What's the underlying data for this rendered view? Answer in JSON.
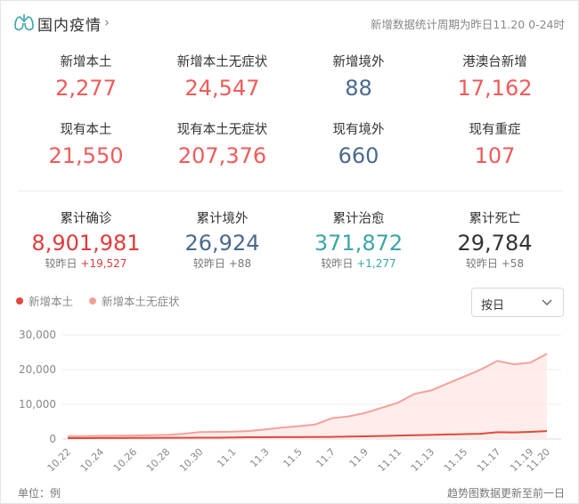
{
  "header": {
    "title": "国内疫情",
    "chevron": "›",
    "period": "新增数据统计周期为昨日11.20 0-24时"
  },
  "colors": {
    "red": "#ef5b5b",
    "darkred": "#e23a3a",
    "blue": "#4a6a8c",
    "teal": "#3aa6a6",
    "dark": "#333333",
    "line1": "#e04a3c",
    "line2": "#f4a19a",
    "area2": "#fde6e3"
  },
  "stats_row1": [
    {
      "label": "新增本土",
      "value": "2,277",
      "color": "red"
    },
    {
      "label": "新增本土无症状",
      "value": "24,547",
      "color": "red"
    },
    {
      "label": "新增境外",
      "value": "88",
      "color": "blue"
    },
    {
      "label": "港澳台新增",
      "value": "17,162",
      "color": "red"
    }
  ],
  "stats_row2": [
    {
      "label": "现有本土",
      "value": "21,550",
      "color": "red"
    },
    {
      "label": "现有本土无症状",
      "value": "207,376",
      "color": "red"
    },
    {
      "label": "现有境外",
      "value": "660",
      "color": "blue"
    },
    {
      "label": "现有重症",
      "value": "107",
      "color": "red"
    }
  ],
  "stats_row3": [
    {
      "label": "累计确诊",
      "value": "8,901,981",
      "sub_prefix": "较昨日",
      "sub_delta": "+19,527",
      "color": "darkred"
    },
    {
      "label": "累计境外",
      "value": "26,924",
      "sub_prefix": "较昨日",
      "sub_delta": "+88",
      "color": "blue"
    },
    {
      "label": "累计治愈",
      "value": "371,872",
      "sub_prefix": "较昨日",
      "sub_delta": "+1,277",
      "color": "teal"
    },
    {
      "label": "累计死亡",
      "value": "29,784",
      "sub_prefix": "较昨日",
      "sub_delta": "+58",
      "color": "dark"
    }
  ],
  "legend": [
    {
      "name": "新增本土",
      "color": "#e04a3c"
    },
    {
      "name": "新增本土无症状",
      "color": "#f4a19a"
    }
  ],
  "select": {
    "value": "按日"
  },
  "chart_data": {
    "type": "area",
    "x": [
      "10.22",
      "10.23",
      "10.24",
      "10.25",
      "10.26",
      "10.27",
      "10.28",
      "10.29",
      "10.30",
      "10.31",
      "11.1",
      "11.2",
      "11.3",
      "11.4",
      "11.5",
      "11.6",
      "11.7",
      "11.8",
      "11.9",
      "11.10",
      "11.11",
      "11.12",
      "11.13",
      "11.14",
      "11.15",
      "11.16",
      "11.17",
      "11.18",
      "11.19",
      "11.20"
    ],
    "x_tick_labels": [
      "10.22",
      "10.24",
      "10.26",
      "10.28",
      "10.30",
      "11.1",
      "11.3",
      "11.5",
      "11.7",
      "11.9",
      "11.11",
      "11.13",
      "11.15",
      "11.17",
      "11.19",
      "11.20"
    ],
    "y_ticks": [
      "0",
      "10,000",
      "20,000",
      "30,000"
    ],
    "ylim": [
      0,
      30000
    ],
    "series": [
      {
        "name": "新增本土",
        "values": [
          250,
          260,
          280,
          300,
          320,
          330,
          340,
          350,
          380,
          400,
          450,
          500,
          520,
          560,
          530,
          570,
          620,
          700,
          780,
          850,
          1000,
          1100,
          1200,
          1300,
          1400,
          1500,
          1950,
          1900,
          2050,
          2277
        ]
      },
      {
        "name": "新增本土无症状",
        "values": [
          800,
          820,
          900,
          950,
          1000,
          1100,
          1200,
          1500,
          2000,
          2050,
          2100,
          2300,
          2800,
          3300,
          3700,
          4200,
          6000,
          6500,
          7500,
          9000,
          10500,
          13000,
          14000,
          16000,
          18000,
          20000,
          22500,
          21500,
          22000,
          24547
        ]
      }
    ]
  },
  "footer": {
    "unit": "单位：例",
    "note": "趋势图数据更新至前一日"
  }
}
